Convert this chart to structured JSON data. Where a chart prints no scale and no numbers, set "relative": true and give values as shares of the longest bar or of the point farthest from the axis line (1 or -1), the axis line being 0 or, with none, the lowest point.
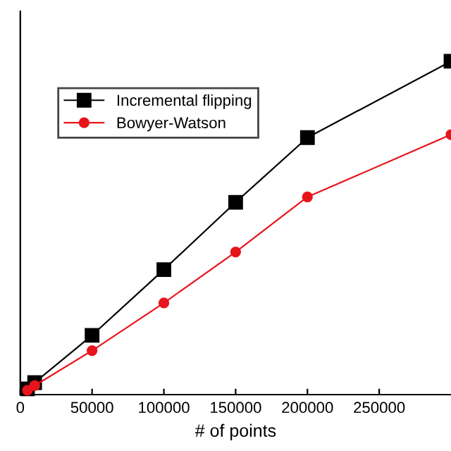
{
  "chart_data": {
    "type": "line",
    "xlabel": "# of points",
    "relative": true,
    "x": [
      5000,
      10000,
      50000,
      100000,
      150000,
      200000,
      300000
    ],
    "xlim": [
      0,
      300000
    ],
    "xticks": [
      0,
      50000,
      100000,
      150000,
      200000,
      250000
    ],
    "legend": "top left",
    "line_style": "solid",
    "series": [
      {
        "name": "Incremental flipping",
        "color": "#000000",
        "marker": "square",
        "values": [
          0.017,
          0.036,
          0.178,
          0.375,
          0.577,
          0.771,
          1
        ]
      },
      {
        "name": "Bowyer-Watson",
        "color": "#e8141c",
        "marker": "circle",
        "values": [
          0.013,
          0.027,
          0.132,
          0.275,
          0.428,
          0.593,
          0.78
        ]
      }
    ]
  }
}
